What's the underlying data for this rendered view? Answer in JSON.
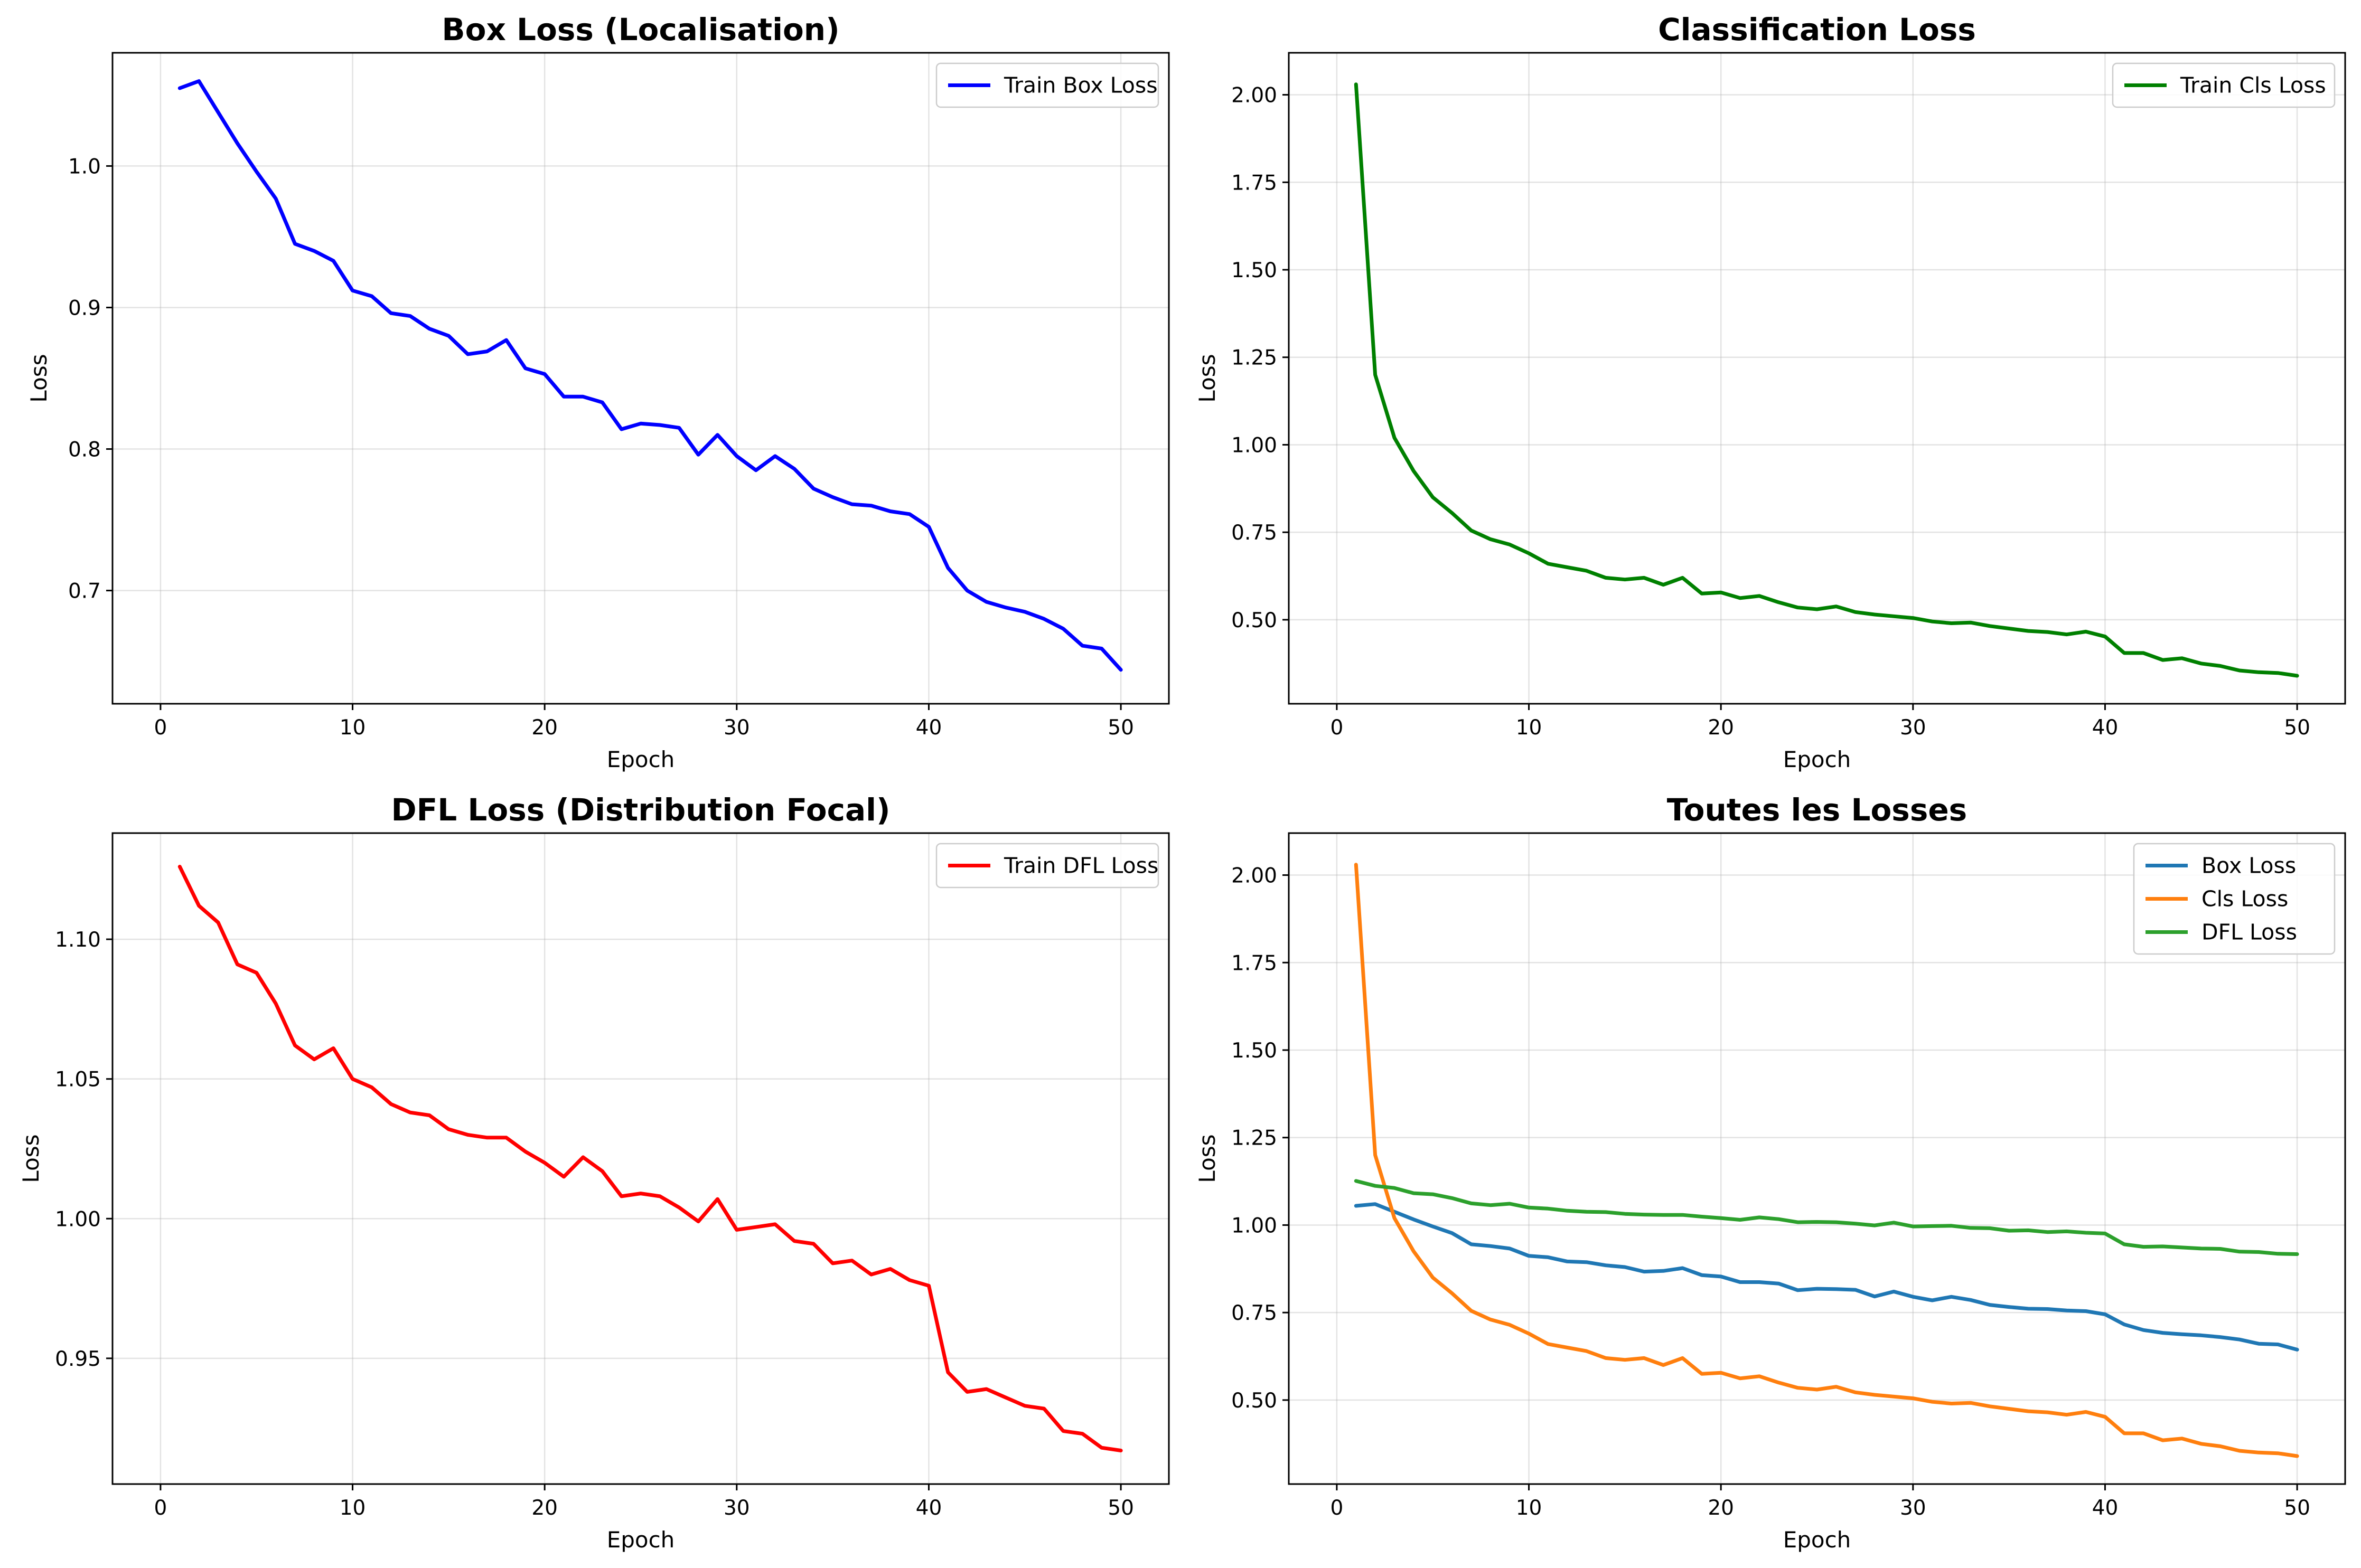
{
  "chart_data": [
    {
      "type": "line",
      "title": "Box Loss (Localisation)",
      "xlabel": "Epoch",
      "ylabel": "Loss",
      "xlim": [
        -2.5,
        52.5
      ],
      "ylim": [
        0.62,
        1.08
      ],
      "xticks": [
        0,
        10,
        20,
        30,
        40,
        50
      ],
      "yticks": [
        0.7,
        0.8,
        0.9,
        1.0
      ],
      "ytick_labels": [
        "0.7",
        "0.8",
        "0.9",
        "1.0"
      ],
      "grid": true,
      "legend_position": "top-right",
      "x": [
        1,
        2,
        3,
        4,
        5,
        6,
        7,
        8,
        9,
        10,
        11,
        12,
        13,
        14,
        15,
        16,
        17,
        18,
        19,
        20,
        21,
        22,
        23,
        24,
        25,
        26,
        27,
        28,
        29,
        30,
        31,
        32,
        33,
        34,
        35,
        36,
        37,
        38,
        39,
        40,
        41,
        42,
        43,
        44,
        45,
        46,
        47,
        48,
        49,
        50
      ],
      "series": [
        {
          "name": "Train Box Loss",
          "color": "#0000ff",
          "values": [
            1.055,
            1.06,
            1.038,
            1.016,
            0.996,
            0.977,
            0.945,
            0.94,
            0.933,
            0.912,
            0.908,
            0.896,
            0.894,
            0.885,
            0.88,
            0.867,
            0.869,
            0.877,
            0.857,
            0.853,
            0.837,
            0.837,
            0.833,
            0.814,
            0.818,
            0.817,
            0.815,
            0.796,
            0.81,
            0.795,
            0.785,
            0.795,
            0.786,
            0.772,
            0.766,
            0.761,
            0.76,
            0.756,
            0.754,
            0.745,
            0.716,
            0.7,
            0.692,
            0.688,
            0.685,
            0.68,
            0.673,
            0.661,
            0.659,
            0.644
          ]
        }
      ]
    },
    {
      "type": "line",
      "title": "Classification Loss",
      "xlabel": "Epoch",
      "ylabel": "Loss",
      "xlim": [
        -2.5,
        52.5
      ],
      "ylim": [
        0.26,
        2.12
      ],
      "xticks": [
        0,
        10,
        20,
        30,
        40,
        50
      ],
      "yticks": [
        0.5,
        0.75,
        1.0,
        1.25,
        1.5,
        1.75,
        2.0
      ],
      "ytick_labels": [
        "0.50",
        "0.75",
        "1.00",
        "1.25",
        "1.50",
        "1.75",
        "2.00"
      ],
      "grid": true,
      "legend_position": "top-right",
      "x": [
        1,
        2,
        3,
        4,
        5,
        6,
        7,
        8,
        9,
        10,
        11,
        12,
        13,
        14,
        15,
        16,
        17,
        18,
        19,
        20,
        21,
        22,
        23,
        24,
        25,
        26,
        27,
        28,
        29,
        30,
        31,
        32,
        33,
        34,
        35,
        36,
        37,
        38,
        39,
        40,
        41,
        42,
        43,
        44,
        45,
        46,
        47,
        48,
        49,
        50
      ],
      "series": [
        {
          "name": "Train Cls Loss",
          "color": "#008000",
          "values": [
            2.03,
            1.2,
            1.02,
            0.925,
            0.85,
            0.805,
            0.755,
            0.73,
            0.715,
            0.69,
            0.66,
            0.65,
            0.64,
            0.62,
            0.615,
            0.62,
            0.6,
            0.62,
            0.575,
            0.578,
            0.562,
            0.568,
            0.55,
            0.535,
            0.53,
            0.538,
            0.522,
            0.515,
            0.51,
            0.505,
            0.495,
            0.49,
            0.492,
            0.482,
            0.475,
            0.468,
            0.465,
            0.458,
            0.466,
            0.452,
            0.405,
            0.405,
            0.385,
            0.39,
            0.375,
            0.368,
            0.355,
            0.35,
            0.348,
            0.34
          ]
        }
      ]
    },
    {
      "type": "line",
      "title": "DFL Loss (Distribution Focal)",
      "xlabel": "Epoch",
      "ylabel": "Loss",
      "xlim": [
        -2.5,
        52.5
      ],
      "ylim": [
        0.905,
        1.138
      ],
      "xticks": [
        0,
        10,
        20,
        30,
        40,
        50
      ],
      "yticks": [
        0.95,
        1.0,
        1.05,
        1.1
      ],
      "ytick_labels": [
        "0.95",
        "1.00",
        "1.05",
        "1.10"
      ],
      "grid": true,
      "legend_position": "top-right",
      "x": [
        1,
        2,
        3,
        4,
        5,
        6,
        7,
        8,
        9,
        10,
        11,
        12,
        13,
        14,
        15,
        16,
        17,
        18,
        19,
        20,
        21,
        22,
        23,
        24,
        25,
        26,
        27,
        28,
        29,
        30,
        31,
        32,
        33,
        34,
        35,
        36,
        37,
        38,
        39,
        40,
        41,
        42,
        43,
        44,
        45,
        46,
        47,
        48,
        49,
        50
      ],
      "series": [
        {
          "name": "Train DFL Loss",
          "color": "#ff0000",
          "values": [
            1.126,
            1.112,
            1.106,
            1.091,
            1.088,
            1.077,
            1.062,
            1.057,
            1.061,
            1.05,
            1.047,
            1.041,
            1.038,
            1.037,
            1.032,
            1.03,
            1.029,
            1.029,
            1.024,
            1.02,
            1.015,
            1.022,
            1.017,
            1.008,
            1.009,
            1.008,
            1.004,
            0.999,
            1.007,
            0.996,
            0.997,
            0.998,
            0.992,
            0.991,
            0.984,
            0.985,
            0.98,
            0.982,
            0.978,
            0.976,
            0.945,
            0.938,
            0.939,
            0.936,
            0.933,
            0.932,
            0.924,
            0.923,
            0.918,
            0.917
          ]
        }
      ]
    },
    {
      "type": "line",
      "title": "Toutes les Losses",
      "xlabel": "Epoch",
      "ylabel": "Loss",
      "xlim": [
        -2.5,
        52.5
      ],
      "ylim": [
        0.26,
        2.12
      ],
      "xticks": [
        0,
        10,
        20,
        30,
        40,
        50
      ],
      "yticks": [
        0.5,
        0.75,
        1.0,
        1.25,
        1.5,
        1.75,
        2.0
      ],
      "ytick_labels": [
        "0.50",
        "0.75",
        "1.00",
        "1.25",
        "1.50",
        "1.75",
        "2.00"
      ],
      "grid": true,
      "legend_position": "top-right",
      "x": [
        1,
        2,
        3,
        4,
        5,
        6,
        7,
        8,
        9,
        10,
        11,
        12,
        13,
        14,
        15,
        16,
        17,
        18,
        19,
        20,
        21,
        22,
        23,
        24,
        25,
        26,
        27,
        28,
        29,
        30,
        31,
        32,
        33,
        34,
        35,
        36,
        37,
        38,
        39,
        40,
        41,
        42,
        43,
        44,
        45,
        46,
        47,
        48,
        49,
        50
      ],
      "series": [
        {
          "name": "Box Loss",
          "color": "#1f77b4",
          "values": [
            1.055,
            1.06,
            1.038,
            1.016,
            0.996,
            0.977,
            0.945,
            0.94,
            0.933,
            0.912,
            0.908,
            0.896,
            0.894,
            0.885,
            0.88,
            0.867,
            0.869,
            0.877,
            0.857,
            0.853,
            0.837,
            0.837,
            0.833,
            0.814,
            0.818,
            0.817,
            0.815,
            0.796,
            0.81,
            0.795,
            0.785,
            0.795,
            0.786,
            0.772,
            0.766,
            0.761,
            0.76,
            0.756,
            0.754,
            0.745,
            0.716,
            0.7,
            0.692,
            0.688,
            0.685,
            0.68,
            0.673,
            0.661,
            0.659,
            0.644
          ]
        },
        {
          "name": "Cls Loss",
          "color": "#ff7f0e",
          "values": [
            2.03,
            1.2,
            1.02,
            0.925,
            0.85,
            0.805,
            0.755,
            0.73,
            0.715,
            0.69,
            0.66,
            0.65,
            0.64,
            0.62,
            0.615,
            0.62,
            0.6,
            0.62,
            0.575,
            0.578,
            0.562,
            0.568,
            0.55,
            0.535,
            0.53,
            0.538,
            0.522,
            0.515,
            0.51,
            0.505,
            0.495,
            0.49,
            0.492,
            0.482,
            0.475,
            0.468,
            0.465,
            0.458,
            0.466,
            0.452,
            0.405,
            0.405,
            0.385,
            0.39,
            0.375,
            0.368,
            0.355,
            0.35,
            0.348,
            0.34
          ]
        },
        {
          "name": "DFL Loss",
          "color": "#2ca02c",
          "values": [
            1.126,
            1.112,
            1.106,
            1.091,
            1.088,
            1.077,
            1.062,
            1.057,
            1.061,
            1.05,
            1.047,
            1.041,
            1.038,
            1.037,
            1.032,
            1.03,
            1.029,
            1.029,
            1.024,
            1.02,
            1.015,
            1.022,
            1.017,
            1.008,
            1.009,
            1.008,
            1.004,
            0.999,
            1.007,
            0.996,
            0.997,
            0.998,
            0.992,
            0.991,
            0.984,
            0.985,
            0.98,
            0.982,
            0.978,
            0.976,
            0.945,
            0.938,
            0.939,
            0.936,
            0.933,
            0.932,
            0.924,
            0.923,
            0.918,
            0.917
          ]
        }
      ]
    }
  ]
}
